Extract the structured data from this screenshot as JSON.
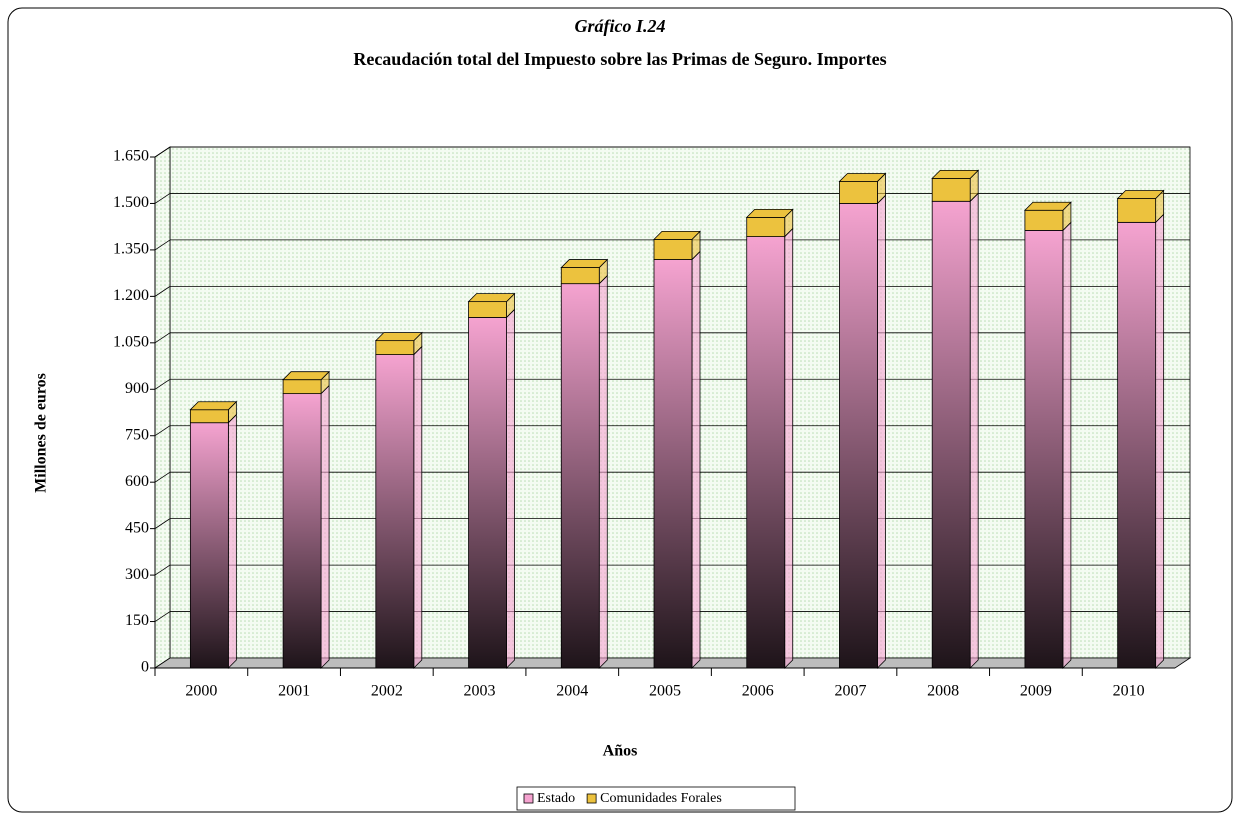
{
  "chart_data": {
    "type": "stacked_bar_3d",
    "title": "Gráfico I.24",
    "subtitle": "Recaudación total del Impuesto sobre las Primas de Seguro. Importes",
    "x_label": "Años",
    "y_label": "Millones de euros",
    "categories": [
      "2000",
      "2001",
      "2002",
      "2003",
      "2004",
      "2005",
      "2006",
      "2007",
      "2008",
      "2009",
      "2010"
    ],
    "series": [
      {
        "name": "Estado",
        "color": "#f5a3d0",
        "values": [
          792,
          886,
          1012,
          1132,
          1241,
          1319,
          1393,
          1500,
          1507,
          1413,
          1439
        ]
      },
      {
        "name": "Comunidades Forales",
        "color": "#ecc23e",
        "values": [
          42,
          45,
          45,
          51,
          52,
          65,
          62,
          71,
          74,
          65,
          77
        ]
      }
    ],
    "ylim": [
      0,
      1650
    ],
    "yticks": [
      0,
      150,
      300,
      450,
      600,
      750,
      900,
      {
        "value": 1050,
        "label": "1.050"
      },
      {
        "value": 1200,
        "label": "1.200"
      },
      {
        "value": 1350,
        "label": "1.350"
      },
      {
        "value": 1500,
        "label": "1.500"
      },
      {
        "value": 1650,
        "label": "1.650"
      }
    ],
    "grid": true,
    "legend": "bottom"
  }
}
